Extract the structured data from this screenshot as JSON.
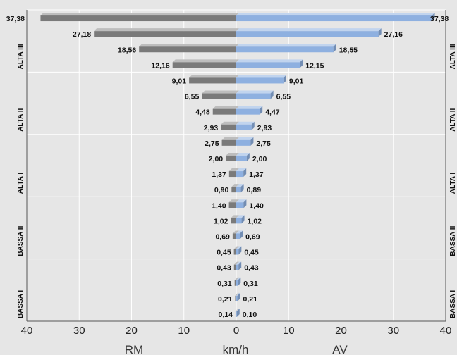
{
  "chart_data": {
    "type": "bar",
    "orientation": "horizontal-butterfly",
    "unit_label": "km/h",
    "left_series": {
      "name": "RM",
      "color": "#7a7a7a",
      "values": [
        37.38,
        27.18,
        18.56,
        12.16,
        9.01,
        6.55,
        4.48,
        2.93,
        2.75,
        2.0,
        1.37,
        0.9,
        1.4,
        1.02,
        0.69,
        0.45,
        0.43,
        0.31,
        0.21,
        0.14
      ],
      "labels": [
        "37,38",
        "27,18",
        "18,56",
        "12,16",
        "9,01",
        "6,55",
        "4,48",
        "2,93",
        "2,75",
        "2,00",
        "1,37",
        "0,90",
        "1,40",
        "1,02",
        "0,69",
        "0,45",
        "0,43",
        "0,31",
        "0,21",
        "0,14"
      ]
    },
    "right_series": {
      "name": "AV",
      "color": "#8eb0e0",
      "values": [
        37.38,
        27.16,
        18.55,
        12.15,
        9.01,
        6.55,
        4.47,
        2.93,
        2.75,
        2.0,
        1.37,
        0.89,
        1.4,
        1.02,
        0.69,
        0.45,
        0.43,
        0.31,
        0.21,
        0.1
      ],
      "labels": [
        "37,38",
        "27,16",
        "18,55",
        "12,15",
        "9,01",
        "6,55",
        "4,47",
        "2,93",
        "2,75",
        "2,00",
        "1,37",
        "0,89",
        "1,40",
        "1,02",
        "0,69",
        "0,45",
        "0,43",
        "0,31",
        "0,21",
        "0,10"
      ]
    },
    "groups": [
      {
        "name": "ALTA III",
        "rows": [
          0,
          3
        ]
      },
      {
        "name": "ALTA II",
        "rows": [
          4,
          7
        ]
      },
      {
        "name": "ALTA I",
        "rows": [
          8,
          11
        ]
      },
      {
        "name": "BASSA II",
        "rows": [
          12,
          15
        ]
      },
      {
        "name": "BASSA I",
        "rows": [
          16,
          19
        ]
      }
    ],
    "x_range": [
      -40,
      40
    ],
    "x_ticks": [
      "40",
      "30",
      "20",
      "10",
      "0",
      "10",
      "20",
      "30",
      "40"
    ],
    "x_titles": {
      "left": "RM",
      "center": "km/h",
      "right": "AV"
    },
    "grid": true,
    "colors": {
      "background": "#e6e6e6",
      "grid": "#ffffff"
    }
  }
}
